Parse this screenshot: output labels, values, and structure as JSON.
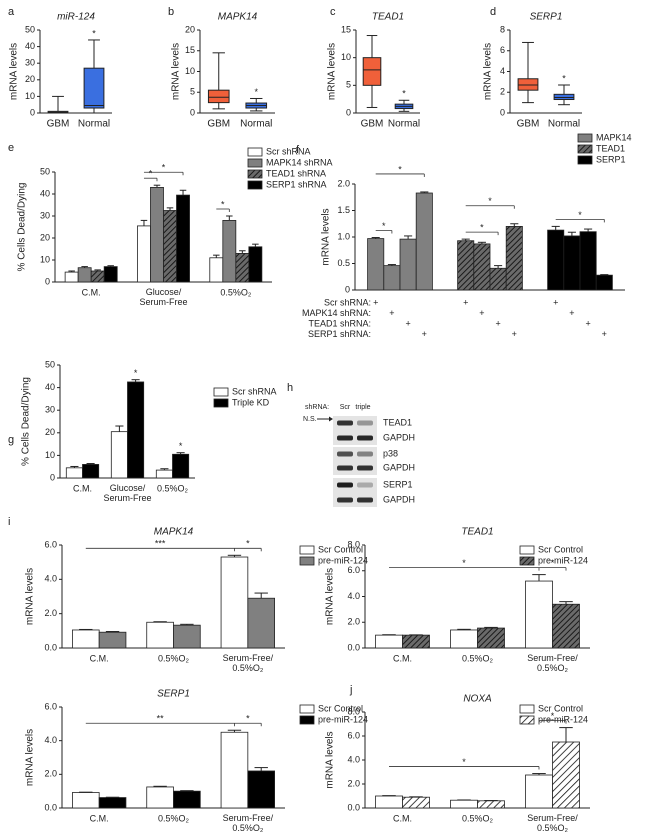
{
  "chart_data": [
    {
      "type": "box",
      "panel": "a",
      "title": "miR-124",
      "ylabel": "mRNA levels",
      "categories": [
        "GBM",
        "Normal"
      ],
      "boxes": [
        {
          "color": "#ffffff",
          "min": 0,
          "q1": 0,
          "median": 0.5,
          "q3": 1,
          "max": 10
        },
        {
          "color": "#3a6fe0",
          "min": 0,
          "q1": 3,
          "median": 4.5,
          "q3": 27,
          "max": 44
        }
      ],
      "ylim": [
        0,
        50
      ],
      "yticks": [
        0,
        10,
        20,
        30,
        40,
        50
      ],
      "annotations": [
        {
          "text": "*",
          "box": 1
        }
      ]
    },
    {
      "type": "box",
      "panel": "b",
      "title": "MAPK14",
      "ylabel": "mRNA levels",
      "categories": [
        "GBM",
        "Normal"
      ],
      "boxes": [
        {
          "color": "#f0603a",
          "min": 1,
          "q1": 2.5,
          "median": 3.8,
          "q3": 5.5,
          "max": 14.5
        },
        {
          "color": "#3a6fe0",
          "min": 0.5,
          "q1": 1.2,
          "median": 1.8,
          "q3": 2.4,
          "max": 3.5
        }
      ],
      "ylim": [
        0,
        20
      ],
      "yticks": [
        0,
        5,
        10,
        15,
        20
      ],
      "annotations": [
        {
          "text": "*",
          "box": 1
        }
      ]
    },
    {
      "type": "box",
      "panel": "c",
      "title": "TEAD1",
      "ylabel": "mRNA levels",
      "categories": [
        "GBM",
        "Normal"
      ],
      "boxes": [
        {
          "color": "#f0603a",
          "min": 1,
          "q1": 5,
          "median": 7.8,
          "q3": 10,
          "max": 14
        },
        {
          "color": "#3a6fe0",
          "min": 0.3,
          "q1": 0.8,
          "median": 1.2,
          "q3": 1.6,
          "max": 2.3
        }
      ],
      "ylim": [
        0,
        15
      ],
      "yticks": [
        0,
        5,
        10,
        15
      ],
      "annotations": [
        {
          "text": "*",
          "box": 1
        }
      ]
    },
    {
      "type": "box",
      "panel": "d",
      "title": "SERP1",
      "ylabel": "mRNA levels",
      "categories": [
        "GBM",
        "Normal"
      ],
      "boxes": [
        {
          "color": "#f0603a",
          "min": 1,
          "q1": 2.2,
          "median": 2.7,
          "q3": 3.3,
          "max": 6.8
        },
        {
          "color": "#3a6fe0",
          "min": 0.8,
          "q1": 1.3,
          "median": 1.5,
          "q3": 1.8,
          "max": 2.7
        }
      ],
      "ylim": [
        0,
        8
      ],
      "yticks": [
        0,
        2,
        4,
        6,
        8
      ],
      "annotations": [
        {
          "text": "*",
          "box": 1
        }
      ]
    },
    {
      "type": "bar",
      "panel": "e",
      "ylabel": "% Cells Dead/Dying",
      "categories": [
        "C.M.",
        "Glucose/\nSerum-Free",
        "0.5%O₂"
      ],
      "series": [
        {
          "name": "Scr shRNA",
          "color": "#ffffff",
          "values": [
            4.5,
            25.5,
            11
          ],
          "errors": [
            0.5,
            2.5,
            1.2
          ]
        },
        {
          "name": "MAPK14 shRNA",
          "color": "#808080",
          "values": [
            6.5,
            43,
            28
          ],
          "errors": [
            0.5,
            1,
            2
          ]
        },
        {
          "name": "TEAD1 shRNA",
          "color": "#555555",
          "pattern": "dark-stripes",
          "values": [
            5,
            32.5,
            13
          ],
          "errors": [
            0.5,
            1.2,
            1.2
          ]
        },
        {
          "name": "SERP1 shRNA",
          "color": "#000000",
          "values": [
            7,
            39.5,
            16
          ],
          "errors": [
            0.4,
            2.2,
            1.2
          ]
        }
      ],
      "ylim": [
        0,
        50
      ],
      "yticks": [
        0,
        10,
        20,
        30,
        40,
        50
      ],
      "brackets": [
        {
          "text": "*",
          "from": [
            0,
            1
          ],
          "to": [
            1,
            1
          ]
        },
        {
          "text": "*",
          "from": [
            0,
            1
          ],
          "to": [
            3,
            1
          ]
        },
        {
          "text": "*",
          "from": [
            0,
            2
          ],
          "to": [
            1,
            2
          ]
        }
      ]
    },
    {
      "type": "bar",
      "panel": "f",
      "ylabel": "mRNA levels",
      "conditions": [
        {
          "label": "Scr shRNA:",
          "sign": "+"
        },
        {
          "label": "MAPK14 shRNA:",
          "sign": "+"
        },
        {
          "label": "TEAD1 shRNA:",
          "sign": "+"
        },
        {
          "label": "SERP1 shRNA:",
          "sign": "+"
        }
      ],
      "series": [
        {
          "name": "MAPK14",
          "color": "#808080",
          "values": [
            0.97,
            0.46,
            0.96,
            1.83
          ],
          "errors": [
            0.02,
            0.02,
            0.06,
            0.02
          ]
        },
        {
          "name": "TEAD1",
          "color": "#555555",
          "pattern": "dark-stripes",
          "values": [
            0.93,
            0.87,
            0.41,
            1.2
          ],
          "errors": [
            0.03,
            0.03,
            0.05,
            0.05
          ]
        },
        {
          "name": "SERP1",
          "color": "#000000",
          "values": [
            1.13,
            1.02,
            1.1,
            0.28
          ],
          "errors": [
            0.07,
            0.07,
            0.05,
            0.01
          ]
        }
      ],
      "ylim": [
        0,
        2
      ],
      "yticks": [
        0,
        0.5,
        {
          "value": 1,
          "label": "1.0"
        },
        1.5,
        {
          "value": 2,
          "label": "2.0"
        }
      ],
      "brackets": [
        {
          "text": "*",
          "from": [
            0,
            0
          ],
          "to": [
            0,
            1
          ]
        },
        {
          "text": "*",
          "from": [
            0,
            0
          ],
          "to": [
            0,
            3
          ]
        },
        {
          "text": "*",
          "from": [
            1,
            0
          ],
          "to": [
            1,
            2
          ]
        },
        {
          "text": "*",
          "from": [
            1,
            0
          ],
          "to": [
            1,
            3
          ]
        },
        {
          "text": "*",
          "from": [
            2,
            0
          ],
          "to": [
            2,
            3
          ]
        }
      ]
    },
    {
      "type": "bar",
      "panel": "g",
      "ylabel": "% Cells Dead/Dying",
      "categories": [
        "C.M.",
        "Glucose/\nSerum-Free",
        "0.5%O₂"
      ],
      "series": [
        {
          "name": "Scr shRNA",
          "color": "#ffffff",
          "values": [
            4.5,
            20.5,
            3.5
          ],
          "errors": [
            0.6,
            2.5,
            0.6
          ]
        },
        {
          "name": "Triple KD",
          "color": "#000000",
          "values": [
            6,
            42.5,
            10.5
          ],
          "errors": [
            0.4,
            1,
            0.7
          ]
        }
      ],
      "ylim": [
        0,
        50
      ],
      "yticks": [
        0,
        10,
        20,
        30,
        40,
        50
      ],
      "brackets": [
        {
          "text": "*",
          "from": [
            1,
            1
          ],
          "to": [
            1,
            1
          ]
        },
        {
          "text": "*",
          "from": [
            1,
            2
          ],
          "to": [
            1,
            2
          ]
        }
      ]
    },
    {
      "type": "blot",
      "panel": "h",
      "header": "shRNA:",
      "lanes": [
        "Scr",
        "triple"
      ],
      "arrow_label": "N.S.",
      "bands": [
        "TEAD1",
        "GAPDH",
        "p38",
        "GAPDH",
        "SERP1",
        "GAPDH"
      ]
    },
    {
      "type": "bar",
      "panel": "i",
      "title": "MAPK14",
      "ylabel": "mRNA levels",
      "categories": [
        "C.M.",
        "0.5%O₂",
        "Serum-Free/\n0.5%O₂"
      ],
      "series": [
        {
          "name": "Scr Control",
          "color": "#ffffff",
          "values": [
            1.05,
            1.5,
            5.3
          ],
          "errors": [
            0.03,
            0.03,
            0.1
          ]
        },
        {
          "name": "pre-miR-124",
          "color": "#808080",
          "values": [
            0.92,
            1.33,
            2.9
          ],
          "errors": [
            0.04,
            0.05,
            0.3
          ]
        }
      ],
      "ylim": [
        0,
        6
      ],
      "yticks": [
        {
          "value": 0,
          "label": "0.0"
        },
        {
          "value": 2,
          "label": "2.0"
        },
        {
          "value": 4,
          "label": "4.0"
        },
        {
          "value": 6,
          "label": "6.0"
        }
      ],
      "brackets": [
        {
          "text": "*",
          "from": [
            0,
            2
          ],
          "to": [
            1,
            2
          ]
        },
        {
          "text": "***",
          "from": [
            0,
            0
          ],
          "to": [
            0,
            2
          ]
        }
      ]
    },
    {
      "type": "bar",
      "title": "TEAD1",
      "ylabel": "mRNA levels",
      "categories": [
        "C.M.",
        "0.5%O₂",
        "Serum-Free/\n0.5%O₂"
      ],
      "series": [
        {
          "name": "Scr Control",
          "color": "#ffffff",
          "values": [
            1.0,
            1.4,
            5.2
          ],
          "errors": [
            0.03,
            0.05,
            0.5
          ]
        },
        {
          "name": "pre-miR-124",
          "color": "#555555",
          "pattern": "dark-stripes",
          "values": [
            1.0,
            1.55,
            3.4
          ],
          "errors": [
            0.02,
            0.05,
            0.2
          ]
        }
      ],
      "ylim": [
        0,
        8
      ],
      "yticks": [
        {
          "value": 0,
          "label": "0.0"
        },
        {
          "value": 2,
          "label": "2.0"
        },
        {
          "value": 4,
          "label": "4.0"
        },
        {
          "value": 6,
          "label": "6.0"
        },
        {
          "value": 8,
          "label": "8.0"
        }
      ],
      "brackets": [
        {
          "text": "*",
          "from": [
            0,
            2
          ],
          "to": [
            1,
            2
          ]
        },
        {
          "text": "*",
          "from": [
            0,
            0
          ],
          "to": [
            0,
            2
          ]
        }
      ]
    },
    {
      "type": "bar",
      "title": "SERP1",
      "ylabel": "mRNA levels",
      "categories": [
        "C.M.",
        "0.5%O₂",
        "Serum-Free/\n0.5%O₂"
      ],
      "series": [
        {
          "name": "Scr Control",
          "color": "#ffffff",
          "values": [
            0.92,
            1.25,
            4.5
          ],
          "errors": [
            0.02,
            0.04,
            0.12
          ]
        },
        {
          "name": "pre-miR-124",
          "color": "#000000",
          "values": [
            0.62,
            1.0,
            2.2
          ],
          "errors": [
            0.02,
            0.03,
            0.2
          ]
        }
      ],
      "ylim": [
        0,
        6
      ],
      "yticks": [
        {
          "value": 0,
          "label": "0.0"
        },
        {
          "value": 2,
          "label": "2.0"
        },
        {
          "value": 4,
          "label": "4.0"
        },
        {
          "value": 6,
          "label": "6.0"
        }
      ],
      "brackets": [
        {
          "text": "*",
          "from": [
            0,
            2
          ],
          "to": [
            1,
            2
          ]
        },
        {
          "text": "**",
          "from": [
            0,
            0
          ],
          "to": [
            0,
            2
          ]
        }
      ]
    },
    {
      "type": "bar",
      "panel": "j",
      "title": "NOXA",
      "ylabel": "mRNA levels",
      "categories": [
        "C.M.",
        "0.5%O₂",
        "Serum-Free/\n0.5%O₂"
      ],
      "series": [
        {
          "name": "Scr Control",
          "color": "#ffffff",
          "values": [
            1.0,
            0.65,
            2.75
          ],
          "errors": [
            0.03,
            0.02,
            0.12
          ]
        },
        {
          "name": "pre-miR-124",
          "color": "#ffffff",
          "pattern": "light-stripes",
          "values": [
            0.9,
            0.6,
            5.5
          ],
          "errors": [
            0.03,
            0.02,
            1.2
          ]
        }
      ],
      "ylim": [
        0,
        8
      ],
      "yticks": [
        {
          "value": 0,
          "label": "0.0"
        },
        {
          "value": 2,
          "label": "2.0"
        },
        {
          "value": 4,
          "label": "4.0"
        },
        {
          "value": 6,
          "label": "6.0"
        },
        {
          "value": 8,
          "label": "8.0"
        }
      ],
      "brackets": [
        {
          "text": "*",
          "from": [
            0,
            2
          ],
          "to": [
            1,
            2
          ]
        },
        {
          "text": "*",
          "from": [
            0,
            0
          ],
          "to": [
            0,
            2
          ]
        }
      ]
    }
  ]
}
